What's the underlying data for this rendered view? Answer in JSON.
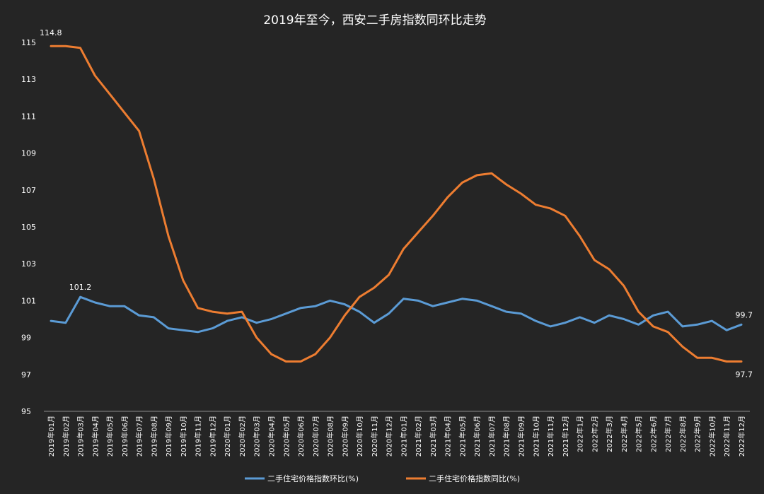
{
  "chart_data": {
    "type": "line",
    "title": "2019年至今，西安二手房指数同环比走势",
    "xlabel": "",
    "ylabel": "",
    "ylim": [
      95,
      115
    ],
    "yticks": [
      95,
      97,
      99,
      101,
      103,
      105,
      107,
      109,
      111,
      113,
      115
    ],
    "grid": false,
    "legend_position": "bottom",
    "categories": [
      "2019年01月",
      "2019年02月",
      "2019年03月",
      "2019年04月",
      "2019年05月",
      "2019年06月",
      "2019年07月",
      "2019年08月",
      "2019年09月",
      "2019年10月",
      "2019年11月",
      "2019年12月",
      "2020年01月",
      "2020年02月",
      "2020年03月",
      "2020年04月",
      "2020年05月",
      "2020年06月",
      "2020年07月",
      "2020年08月",
      "2020年09月",
      "2020年10月",
      "2020年11月",
      "2020年12月",
      "2021年01月",
      "2021年02月",
      "2021年03月",
      "2021年04月",
      "2021年05月",
      "2021年06月",
      "2021年07月",
      "2021年08月",
      "2021年09月",
      "2021年10月",
      "2021年11月",
      "2021年12月",
      "2022年1月",
      "2022年2月",
      "2022年3月",
      "2022年4月",
      "2022年5月",
      "2022年6月",
      "2022年7月",
      "2022年8月",
      "2022年9月",
      "2022年10月",
      "2022年11月",
      "2022年12月"
    ],
    "series": [
      {
        "name": "二手住宅价格指数环比(%)",
        "color": "#5b9bd5",
        "values": [
          99.9,
          99.8,
          101.2,
          100.9,
          100.7,
          100.7,
          100.2,
          100.1,
          99.5,
          99.4,
          99.3,
          99.5,
          99.9,
          100.1,
          99.8,
          100.0,
          100.3,
          100.6,
          100.7,
          101.0,
          100.8,
          100.4,
          99.8,
          100.3,
          101.1,
          101.0,
          100.7,
          100.9,
          101.1,
          101.0,
          100.7,
          100.4,
          100.3,
          99.9,
          99.6,
          99.8,
          100.1,
          99.8,
          100.2,
          100.0,
          99.7,
          100.2,
          100.4,
          99.6,
          99.7,
          99.9,
          99.4,
          99.7
        ],
        "data_labels": [
          {
            "index": 2,
            "text": "101.2"
          },
          {
            "index": 47,
            "text": "99.7"
          }
        ]
      },
      {
        "name": "二手住宅价格指数同比(%)",
        "color": "#ed7d31",
        "values": [
          114.8,
          114.8,
          114.7,
          113.2,
          112.2,
          111.2,
          110.2,
          107.6,
          104.5,
          102.1,
          100.6,
          100.4,
          100.3,
          100.4,
          99.0,
          98.1,
          97.7,
          97.7,
          98.1,
          99.0,
          100.2,
          101.2,
          101.7,
          102.4,
          103.8,
          104.7,
          105.6,
          106.6,
          107.4,
          107.8,
          107.9,
          107.3,
          106.8,
          106.2,
          106.0,
          105.6,
          104.5,
          103.2,
          102.7,
          101.8,
          100.4,
          99.6,
          99.3,
          98.5,
          97.9,
          97.9,
          97.7,
          97.7
        ],
        "data_labels": [
          {
            "index": 0,
            "text": "114.8"
          },
          {
            "index": 47,
            "text": "97.7"
          }
        ]
      }
    ]
  }
}
